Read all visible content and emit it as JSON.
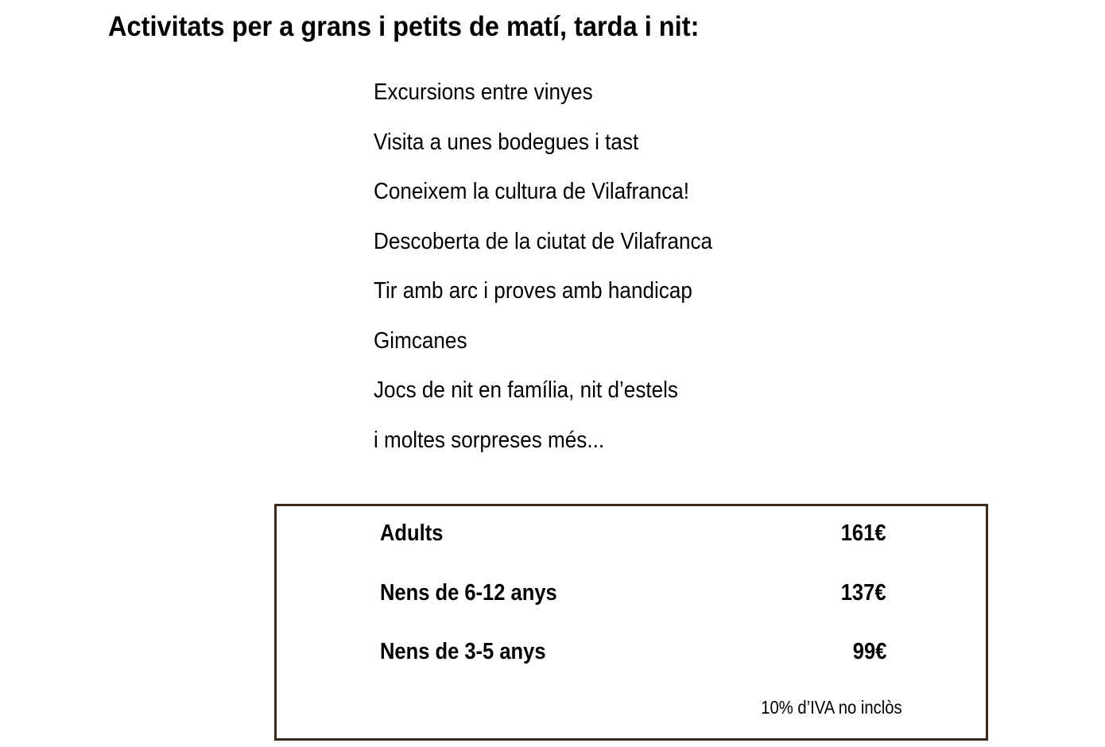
{
  "title": "Activitats per a grans i petits de matí, tarda i nit:",
  "activities": [
    "Excursions entre vinyes",
    "Visita a unes bodegues i tast",
    "Coneixem la cultura de Vilafranca!",
    "Descoberta de la ciutat de Vilafranca",
    "Tir amb arc i proves amb handicap",
    "Gimcanes",
    "Jocs de nit en família, nit d’estels",
    "i moltes sorpreses més..."
  ],
  "prices": [
    {
      "label": "Adults",
      "price": "161€"
    },
    {
      "label": "Nens de 6-12 anys",
      "price": "137€"
    },
    {
      "label": "Nens de 3-5 anys",
      "price": "99€"
    }
  ],
  "note": "10% d’IVA no inclòs",
  "colors": {
    "box_border": "#3b2a1a"
  }
}
